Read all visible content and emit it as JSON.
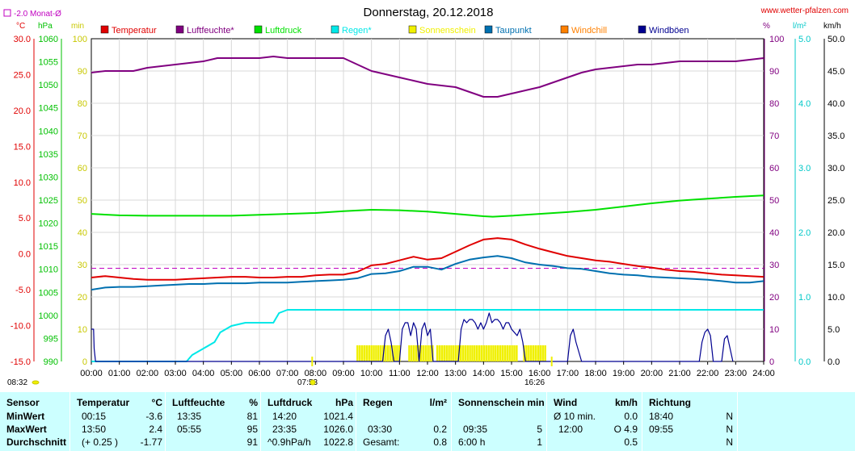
{
  "header": {
    "title": "Donnerstag, 20.12.2018",
    "website": "www.wetter-pfalzen.com",
    "monthly_avg_label": "-2.0 Monat-Ø"
  },
  "colors": {
    "temperature": "#e00000",
    "humidity": "#800080",
    "pressure": "#00e000",
    "rain": "#00e8e8",
    "sunshine": "#f0f000",
    "dewpoint": "#0070b0",
    "windchill": "#ff8000",
    "gusts": "#000090",
    "stats_bg": "#ccffff"
  },
  "chart_data": {
    "type": "line",
    "title": "Donnerstag, 20.12.2018",
    "x_unit": "hours",
    "x_ticks": [
      "00:00",
      "01:00",
      "02:00",
      "03:00",
      "04:00",
      "05:00",
      "06:00",
      "07:00",
      "08:00",
      "09:00",
      "10:00",
      "11:00",
      "12:00",
      "13:00",
      "14:00",
      "15:00",
      "16:00",
      "17:00",
      "18:00",
      "19:00",
      "20:00",
      "21:00",
      "22:00",
      "23:00",
      "24:00"
    ],
    "xlim": [
      0,
      24
    ],
    "axes": {
      "temperature": {
        "unit": "°C",
        "range": [
          -15,
          30
        ],
        "ticks": [
          "30.0",
          "25.0",
          "20.0",
          "15.0",
          "10.0",
          "5.0",
          "0.0",
          "-5.0",
          "-10.0",
          "-15.0"
        ]
      },
      "pressure": {
        "unit": "hPa",
        "range": [
          990,
          1060
        ],
        "ticks": [
          "1060",
          "1055",
          "1050",
          "1045",
          "1040",
          "1035",
          "1030",
          "1025",
          "1020",
          "1015",
          "1010",
          "1005",
          "1000",
          "995",
          "990"
        ]
      },
      "minutes": {
        "unit": "min",
        "range": [
          0,
          100
        ],
        "ticks": [
          "100",
          "90",
          "80",
          "70",
          "60",
          "50",
          "40",
          "30",
          "20",
          "10",
          "0"
        ]
      },
      "humidity": {
        "unit": "%",
        "range": [
          0,
          100
        ],
        "ticks": [
          "100",
          "90",
          "80",
          "70",
          "60",
          "50",
          "40",
          "30",
          "20",
          "10",
          "0"
        ]
      },
      "rain": {
        "unit": "l/m²",
        "range": [
          0,
          5
        ],
        "ticks": [
          "5.0",
          "4.0",
          "3.0",
          "2.0",
          "1.0",
          "0.0"
        ]
      },
      "wind": {
        "unit": "km/h",
        "range": [
          0,
          50
        ],
        "ticks": [
          "50.0",
          "45.0",
          "40.0",
          "35.0",
          "30.0",
          "25.0",
          "20.0",
          "15.0",
          "10.0",
          "5.0",
          "0.0"
        ]
      }
    },
    "monthly_avg_temperature": -2.0,
    "sunrise": "07:53",
    "sunset": "16:26",
    "marker_left": "08:32",
    "series": [
      {
        "name": "Temperatur",
        "axis": "temperature",
        "x": [
          0,
          0.5,
          1,
          1.5,
          2,
          2.5,
          3,
          3.5,
          4,
          4.5,
          5,
          5.5,
          6,
          6.5,
          7,
          7.5,
          8,
          8.5,
          9,
          9.5,
          10,
          10.5,
          11,
          11.5,
          12,
          12.5,
          13,
          13.5,
          14,
          14.5,
          15,
          15.5,
          16,
          16.5,
          17,
          17.5,
          18,
          18.5,
          19,
          19.5,
          20,
          20.5,
          21,
          21.5,
          22,
          22.5,
          23,
          23.5,
          24
        ],
        "y": [
          -3.3,
          -3.1,
          -3.3,
          -3.5,
          -3.6,
          -3.6,
          -3.6,
          -3.5,
          -3.4,
          -3.3,
          -3.2,
          -3.2,
          -3.3,
          -3.3,
          -3.2,
          -3.2,
          -3.0,
          -2.9,
          -2.9,
          -2.5,
          -1.6,
          -1.4,
          -0.9,
          -0.4,
          -0.8,
          -0.6,
          0.3,
          1.2,
          2.0,
          2.2,
          2.0,
          1.3,
          0.7,
          0.2,
          -0.3,
          -0.6,
          -0.9,
          -1.1,
          -1.4,
          -1.7,
          -1.9,
          -2.2,
          -2.4,
          -2.5,
          -2.7,
          -2.9,
          -3.0,
          -3.1,
          -3.2
        ]
      },
      {
        "name": "Luftfeuchte*",
        "axis": "humidity",
        "x": [
          0,
          0.5,
          1,
          1.5,
          2,
          2.5,
          3,
          3.5,
          4,
          4.5,
          5,
          5.5,
          6,
          6.5,
          7,
          7.5,
          8,
          8.5,
          9,
          9.5,
          10,
          10.5,
          11,
          11.5,
          12,
          12.5,
          13,
          13.5,
          14,
          14.5,
          15,
          15.5,
          16,
          16.5,
          17,
          17.5,
          18,
          18.5,
          19,
          19.5,
          20,
          20.5,
          21,
          21.5,
          22,
          22.5,
          23,
          23.5,
          24
        ],
        "y": [
          89.5,
          90,
          90,
          90,
          91,
          91.5,
          92,
          92.5,
          93,
          94,
          94,
          94,
          94,
          94.5,
          94,
          94,
          94,
          94,
          94,
          92,
          90,
          89,
          88,
          87,
          86,
          85.5,
          85,
          83.5,
          82,
          82,
          83,
          84,
          85,
          86.5,
          88,
          89.5,
          90.5,
          91,
          91.5,
          92,
          92,
          92.5,
          93,
          93,
          93,
          93,
          93,
          93.5,
          94
        ]
      },
      {
        "name": "Luftdruck",
        "axis": "pressure",
        "x": [
          0,
          1,
          2,
          3,
          4,
          5,
          6,
          7,
          8,
          9,
          10,
          11,
          12,
          13,
          14,
          14.33,
          15,
          16,
          17,
          18,
          19,
          20,
          21,
          22,
          23,
          24
        ],
        "y": [
          1022.0,
          1021.7,
          1021.6,
          1021.6,
          1021.6,
          1021.6,
          1021.8,
          1022.0,
          1022.2,
          1022.6,
          1022.9,
          1022.8,
          1022.5,
          1022.0,
          1021.5,
          1021.4,
          1021.6,
          1022.0,
          1022.4,
          1022.9,
          1023.6,
          1024.3,
          1024.9,
          1025.3,
          1025.7,
          1026.0
        ]
      },
      {
        "name": "Regen*",
        "axis": "rain",
        "x": [
          0,
          3.4,
          3.6,
          4,
          4.4,
          4.6,
          5.0,
          5.5,
          6.0,
          6.5,
          6.7,
          7.0,
          7.5,
          8.0,
          9,
          10,
          12,
          14,
          16,
          18,
          20,
          22,
          24
        ],
        "y": [
          0,
          0,
          0.1,
          0.2,
          0.3,
          0.45,
          0.55,
          0.6,
          0.6,
          0.6,
          0.75,
          0.8,
          0.8,
          0.8,
          0.8,
          0.8,
          0.8,
          0.8,
          0.8,
          0.8,
          0.8,
          0.8,
          0.8
        ]
      },
      {
        "name": "Sonnenschein",
        "axis": "minutes",
        "intervals": [
          [
            9.5,
            11.0
          ],
          [
            11.35,
            12.25
          ],
          [
            12.35,
            15.25
          ],
          [
            15.45,
            16.25
          ]
        ],
        "level": 5
      },
      {
        "name": "Taupunkt",
        "axis": "temperature",
        "x": [
          0,
          0.5,
          1,
          1.5,
          2,
          2.5,
          3,
          3.5,
          4,
          4.5,
          5,
          5.5,
          6,
          6.5,
          7,
          7.5,
          8,
          8.5,
          9,
          9.5,
          10,
          10.5,
          11,
          11.5,
          12,
          12.5,
          13,
          13.5,
          14,
          14.5,
          15,
          15.5,
          16,
          16.5,
          17,
          17.5,
          18,
          18.5,
          19,
          19.5,
          20,
          20.5,
          21,
          21.5,
          22,
          22.5,
          23,
          23.5,
          24
        ],
        "y": [
          -5.0,
          -4.7,
          -4.6,
          -4.6,
          -4.5,
          -4.4,
          -4.3,
          -4.2,
          -4.2,
          -4.1,
          -4.1,
          -4.1,
          -4.0,
          -4.0,
          -4.0,
          -3.9,
          -3.8,
          -3.7,
          -3.6,
          -3.4,
          -2.8,
          -2.7,
          -2.4,
          -1.8,
          -1.8,
          -2.2,
          -1.4,
          -0.8,
          -0.5,
          -0.3,
          -0.6,
          -1.2,
          -1.5,
          -1.7,
          -2.0,
          -2.1,
          -2.4,
          -2.7,
          -2.9,
          -3.0,
          -3.2,
          -3.3,
          -3.4,
          -3.5,
          -3.6,
          -3.8,
          -4.0,
          -4.0,
          -3.8
        ]
      },
      {
        "name": "Windchill",
        "axis": "temperature",
        "x": [],
        "y": []
      },
      {
        "name": "Windböen",
        "axis": "wind",
        "x": [
          0,
          0.08,
          0.1,
          0.15,
          10.4,
          10.5,
          10.6,
          10.7,
          10.8,
          11.0,
          11.1,
          11.2,
          11.3,
          11.4,
          11.5,
          11.6,
          11.7,
          11.8,
          11.9,
          12.0,
          12.1,
          12.2,
          13.1,
          13.2,
          13.3,
          13.4,
          13.5,
          13.6,
          13.7,
          13.8,
          13.9,
          14.0,
          14.1,
          14.2,
          14.3,
          14.4,
          14.5,
          14.6,
          14.7,
          14.8,
          14.9,
          15.0,
          15.2,
          15.3,
          15.4,
          15.5,
          15.6,
          17.0,
          17.1,
          17.2,
          17.3,
          17.5,
          21.7,
          21.8,
          21.9,
          22.0,
          22.1,
          22.2,
          22.5,
          22.6,
          22.7,
          22.8,
          22.9
        ],
        "y": [
          5.0,
          5.0,
          2.0,
          0,
          0,
          4.0,
          5.0,
          3.0,
          0,
          0,
          5.0,
          6.0,
          6.0,
          4.0,
          6.0,
          5.0,
          0,
          5.0,
          6.0,
          4.0,
          5.0,
          0,
          0,
          5.0,
          6.5,
          6.0,
          6.5,
          6.5,
          6.0,
          5.0,
          6.0,
          5.0,
          6.0,
          7.5,
          6.0,
          6.5,
          6.5,
          6.0,
          5.0,
          6.0,
          6.0,
          5.0,
          4.0,
          5.0,
          3.0,
          0,
          0,
          0,
          4.0,
          5.0,
          3.0,
          0,
          0,
          3.0,
          4.5,
          5.0,
          4.0,
          0,
          0,
          3.5,
          4.0,
          2.0,
          0
        ]
      }
    ]
  },
  "stats": {
    "headers": {
      "sensor": "Sensor",
      "temp": "Temperatur",
      "temp_unit": "°C",
      "hum": "Luftfeuchte",
      "hum_unit": "%",
      "press": "Luftdruck",
      "press_unit": "hPa",
      "rain": "Regen",
      "rain_unit": "l/m²",
      "sun": "Sonnenschein min",
      "wind": "Wind",
      "wind_unit": "km/h",
      "dir": "Richtung"
    },
    "rows": [
      {
        "label": "MinWert",
        "temp_time": "00:15",
        "temp_val": "-3.6",
        "hum_time": "13:35",
        "hum_val": "81",
        "press_time": "14:20",
        "press_val": "1021.4",
        "rain_time": "",
        "rain_val": "",
        "sun_time": "",
        "sun_val": "",
        "wind_time": "Ø 10 min.",
        "wind_val": "0.0",
        "dir_time": "18:40",
        "dir_val": "N"
      },
      {
        "label": "MaxWert",
        "temp_time": "13:50",
        "temp_val": "2.4",
        "hum_time": "05:55",
        "hum_val": "95",
        "press_time": "23:35",
        "press_val": "1026.0",
        "rain_time": "03:30",
        "rain_val": "0.2",
        "sun_time": "09:35",
        "sun_val": "5",
        "wind_time": "12:00",
        "wind_val": "O 4.9",
        "dir_time": "09:55",
        "dir_val": "N"
      },
      {
        "label": "Durchschnitt",
        "temp_time": "(+ 0.25 )",
        "temp_val": "-1.77",
        "hum_time": "",
        "hum_val": "91",
        "press_time": "^0.9hPa/h",
        "press_val": "1022.8",
        "rain_time": "Gesamt:",
        "rain_val": "0.8",
        "sun_time": "6:00 h",
        "sun_val": "1",
        "wind_time": "",
        "wind_val": "0.5",
        "dir_time": "",
        "dir_val": "N"
      }
    ]
  }
}
